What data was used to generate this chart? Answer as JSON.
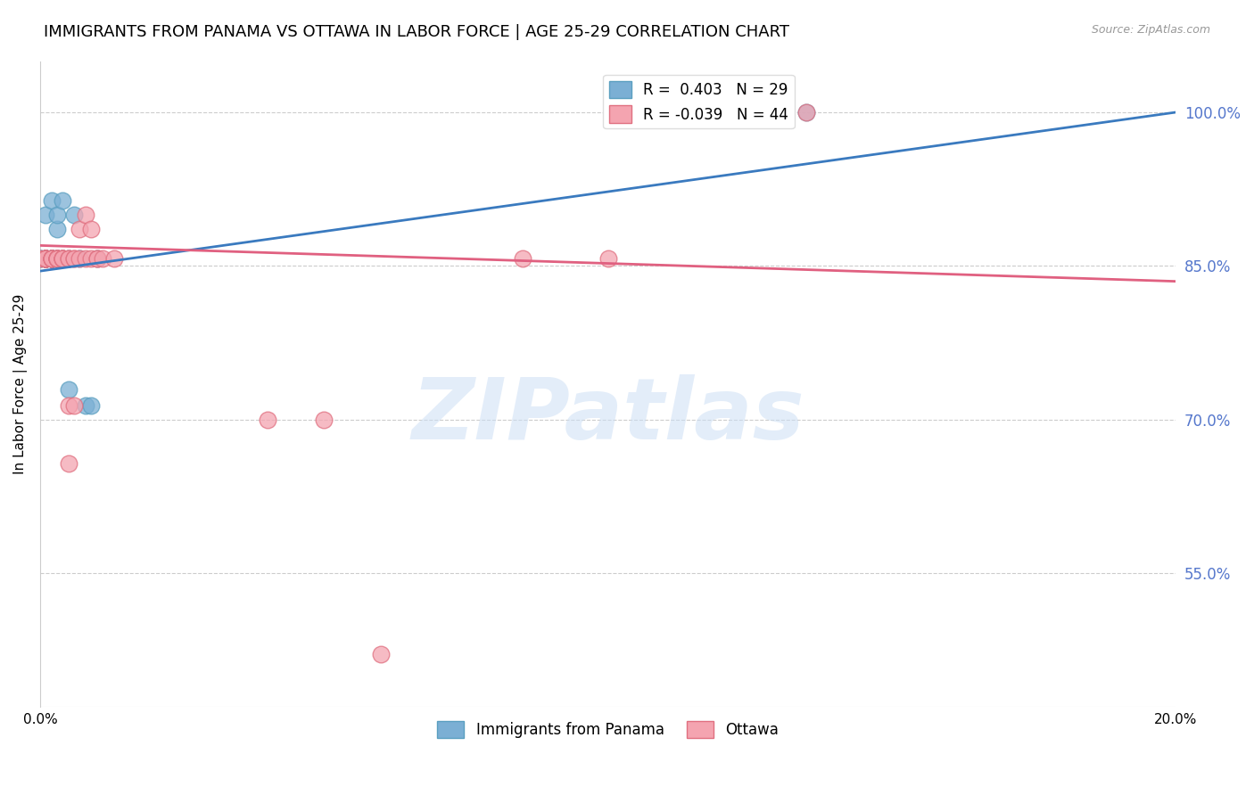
{
  "title": "IMMIGRANTS FROM PANAMA VS OTTAWA IN LABOR FORCE | AGE 25-29 CORRELATION CHART",
  "source": "Source: ZipAtlas.com",
  "ylabel": "In Labor Force | Age 25-29",
  "xlim": [
    0.0,
    0.2
  ],
  "ylim": [
    0.42,
    1.05
  ],
  "xticks": [
    0.0,
    0.04,
    0.08,
    0.12,
    0.16,
    0.2
  ],
  "xticklabels": [
    "0.0%",
    "",
    "",
    "",
    "",
    "20.0%"
  ],
  "yticks_right": [
    0.55,
    0.7,
    0.85,
    1.0
  ],
  "ytick_labels_right": [
    "55.0%",
    "70.0%",
    "85.0%",
    "100.0%"
  ],
  "grid_color": "#cccccc",
  "background_color": "#ffffff",
  "series_blue": {
    "label": "Immigrants from Panama",
    "R": 0.403,
    "N": 29,
    "color": "#7bafd4",
    "edge_color": "#5a9fc0",
    "x": [
      0.0,
      0.0,
      0.001,
      0.001,
      0.001,
      0.001,
      0.001,
      0.001,
      0.001,
      0.002,
      0.002,
      0.002,
      0.002,
      0.002,
      0.002,
      0.003,
      0.003,
      0.003,
      0.003,
      0.004,
      0.004,
      0.005,
      0.005,
      0.006,
      0.007,
      0.008,
      0.009,
      0.01,
      0.135
    ],
    "y": [
      0.857,
      0.857,
      0.857,
      0.857,
      0.857,
      0.857,
      0.857,
      0.9,
      0.857,
      0.857,
      0.857,
      0.857,
      0.857,
      0.914,
      0.857,
      0.886,
      0.857,
      0.9,
      0.857,
      0.914,
      0.857,
      0.729,
      0.857,
      0.9,
      0.857,
      0.714,
      0.714,
      0.857,
      1.0
    ]
  },
  "series_pink": {
    "label": "Ottawa",
    "R": -0.039,
    "N": 44,
    "color": "#f4a4b0",
    "edge_color": "#e07080",
    "x": [
      0.0,
      0.001,
      0.001,
      0.001,
      0.001,
      0.001,
      0.001,
      0.002,
      0.002,
      0.002,
      0.002,
      0.002,
      0.003,
      0.003,
      0.003,
      0.003,
      0.003,
      0.004,
      0.004,
      0.004,
      0.004,
      0.005,
      0.005,
      0.005,
      0.005,
      0.006,
      0.006,
      0.006,
      0.007,
      0.007,
      0.008,
      0.008,
      0.009,
      0.009,
      0.01,
      0.01,
      0.011,
      0.013,
      0.04,
      0.05,
      0.06,
      0.085,
      0.1,
      0.135
    ],
    "y": [
      0.857,
      0.857,
      0.857,
      0.857,
      0.857,
      0.857,
      0.857,
      0.857,
      0.857,
      0.857,
      0.857,
      0.857,
      0.857,
      0.857,
      0.857,
      0.857,
      0.857,
      0.857,
      0.857,
      0.857,
      0.857,
      0.657,
      0.714,
      0.857,
      0.857,
      0.857,
      0.714,
      0.857,
      0.857,
      0.886,
      0.9,
      0.857,
      0.857,
      0.886,
      0.857,
      0.857,
      0.857,
      0.857,
      0.7,
      0.7,
      0.471,
      0.857,
      0.857,
      1.0
    ]
  },
  "blue_line_color": "#3a7abf",
  "pink_line_color": "#e06080",
  "blue_line": {
    "x0": 0.0,
    "y0": 0.845,
    "x1": 0.2,
    "y1": 1.0
  },
  "pink_line": {
    "x0": 0.0,
    "y0": 0.87,
    "x1": 0.2,
    "y1": 0.835
  },
  "watermark": "ZIPatlas",
  "legend_labels": [
    "Immigrants from Panama",
    "Ottawa"
  ],
  "title_fontsize": 13,
  "axis_label_fontsize": 11,
  "tick_fontsize": 11,
  "right_tick_color": "#5577cc"
}
